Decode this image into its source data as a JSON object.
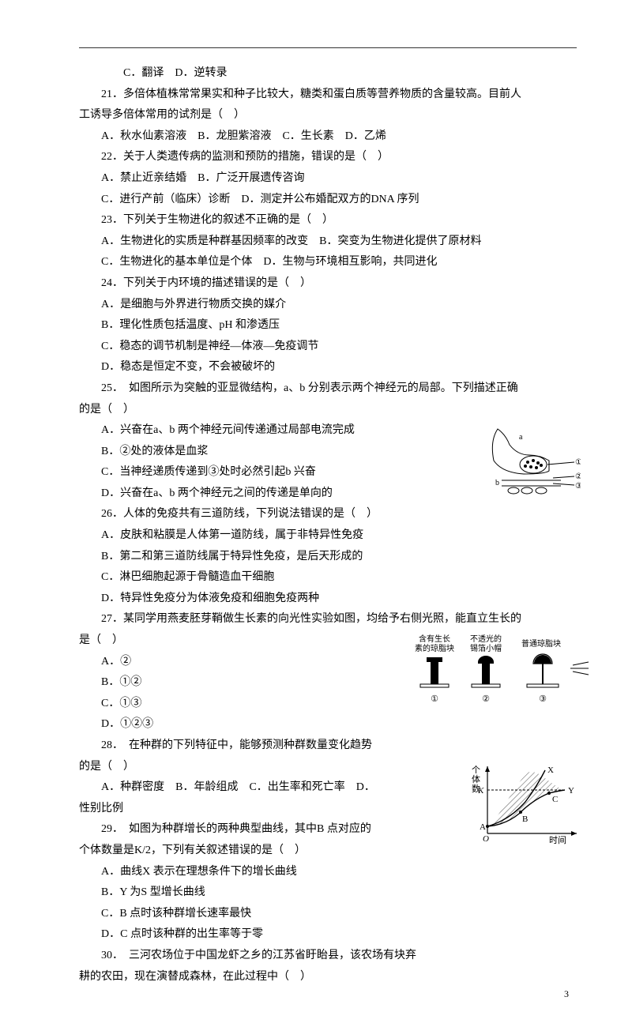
{
  "page_number": "3",
  "lines": [
    {
      "cls": "indent-deep",
      "text": "C．翻译　D．逆转录"
    },
    {
      "cls": "indent",
      "text": "21．多倍体植株常常果实和种子比较大，糖类和蛋白质等营养物质的含量较高。目前人"
    },
    {
      "cls": "",
      "text": "工诱导多倍体常用的试剂是（　）"
    },
    {
      "cls": "indent",
      "text": "A．秋水仙素溶液　B．龙胆紫溶液　C．生长素　D．乙烯"
    },
    {
      "cls": "indent",
      "text": "22．关于人类遗传病的监测和预防的措施，错误的是（　）"
    },
    {
      "cls": "indent",
      "text": "A．禁止近亲结婚　B．广泛开展遗传咨询"
    },
    {
      "cls": "indent",
      "text": "C．进行产前（临床）诊断　D．测定并公布婚配双方的DNA 序列"
    },
    {
      "cls": "indent",
      "text": "23．下列关于生物进化的叙述不正确的是（　）"
    },
    {
      "cls": "indent",
      "text": "A．生物进化的实质是种群基因频率的改变　B．突变为生物进化提供了原材料"
    },
    {
      "cls": "indent",
      "text": "C．生物进化的基本单位是个体　D．生物与环境相互影响，共同进化"
    },
    {
      "cls": "indent",
      "text": "24．下列关于内环境的描述错误的是（　）"
    },
    {
      "cls": "indent",
      "text": "A．是细胞与外界进行物质交换的媒介"
    },
    {
      "cls": "indent",
      "text": "B．理化性质包括温度、pH 和渗透压"
    },
    {
      "cls": "indent",
      "text": "C．稳态的调节机制是神经—体液—免疫调节"
    },
    {
      "cls": "indent",
      "text": "D．稳态是恒定不变，不会被破坏的"
    },
    {
      "cls": "indent",
      "text": "25．　如图所示为突触的亚显微结构，a、b 分别表示两个神经元的局部。下列描述正确"
    },
    {
      "cls": "",
      "text": "的是（　）"
    },
    {
      "cls": "indent",
      "text": "A．兴奋在a、b 两个神经元间传递通过局部电流完成"
    },
    {
      "cls": "indent",
      "text": "B．②处的液体是血浆"
    },
    {
      "cls": "indent",
      "text": "C．当神经递质传递到③处时必然引起b 兴奋"
    },
    {
      "cls": "indent",
      "text": "D．兴奋在a、b 两个神经元之间的传递是单向的"
    },
    {
      "cls": "indent",
      "text": "26．人体的免疫共有三道防线，下列说法错误的是（　）"
    },
    {
      "cls": "indent",
      "text": "A．皮肤和粘膜是人体第一道防线，属于非特异性免疫"
    },
    {
      "cls": "indent",
      "text": "B．第二和第三道防线属于特异性免疫，是后天形成的"
    },
    {
      "cls": "indent",
      "text": "C．淋巴细胞起源于骨髓造血干细胞"
    },
    {
      "cls": "indent",
      "text": "D．特异性免疫分为体液免疫和细胞免疫两种"
    },
    {
      "cls": "indent",
      "text": "27．某同学用燕麦胚芽鞘做生长素的向光性实验如图，均给予右侧光照，能直立生长的"
    },
    {
      "cls": "",
      "text": "是（　）"
    },
    {
      "cls": "indent",
      "text": "A．②"
    },
    {
      "cls": "indent",
      "text": "B．①②"
    },
    {
      "cls": "indent",
      "text": "C．①③"
    },
    {
      "cls": "indent",
      "text": "D．①②③"
    },
    {
      "cls": "indent",
      "text": "28．　在种群的下列特征中，能够预测种群数量变化趋势"
    },
    {
      "cls": "",
      "text": "的是（　）"
    },
    {
      "cls": "indent",
      "text": "A．种群密度　B．年龄组成　C．出生率和死亡率　D．"
    },
    {
      "cls": "",
      "text": "性别比例"
    },
    {
      "cls": "indent",
      "text": "29．　如图为种群增长的两种典型曲线，其中B 点对应的"
    },
    {
      "cls": "",
      "text": "个体数量是K/2，下列有关叙述错误的是（　）"
    },
    {
      "cls": "indent",
      "text": "A．曲线X 表示在理想条件下的增长曲线"
    },
    {
      "cls": "indent",
      "text": "B．Y 为S 型增长曲线"
    },
    {
      "cls": "indent",
      "text": "C．B 点时该种群增长速率最快"
    },
    {
      "cls": "indent",
      "text": "D．C 点时该种群的出生率等于零"
    },
    {
      "cls": "indent",
      "text": "30．　三河农场位于中国龙虾之乡的江苏省盱眙县，该农场有块弃"
    },
    {
      "cls": "",
      "text": "耕的农田，现在演替成森林，在此过程中（　）"
    }
  ],
  "fig_synapse": {
    "labels": {
      "a": "a",
      "b": "b",
      "m1": "①",
      "m2": "②",
      "m3": "③"
    },
    "stroke": "#000000"
  },
  "fig_plants": {
    "caption1": "含有生长\n素的琼脂块",
    "caption2": "不透光的\n锡箔小帽",
    "caption3": "普通琼脂块",
    "num1": "①",
    "num2": "②",
    "num3": "③",
    "light": "light-rays"
  },
  "fig_curve": {
    "ylabel": "个\n体\n数",
    "xlabel": "时间",
    "K": "K",
    "A": "A",
    "B": "B",
    "C": "C",
    "X": "X",
    "Y": "Y",
    "O": "O"
  }
}
